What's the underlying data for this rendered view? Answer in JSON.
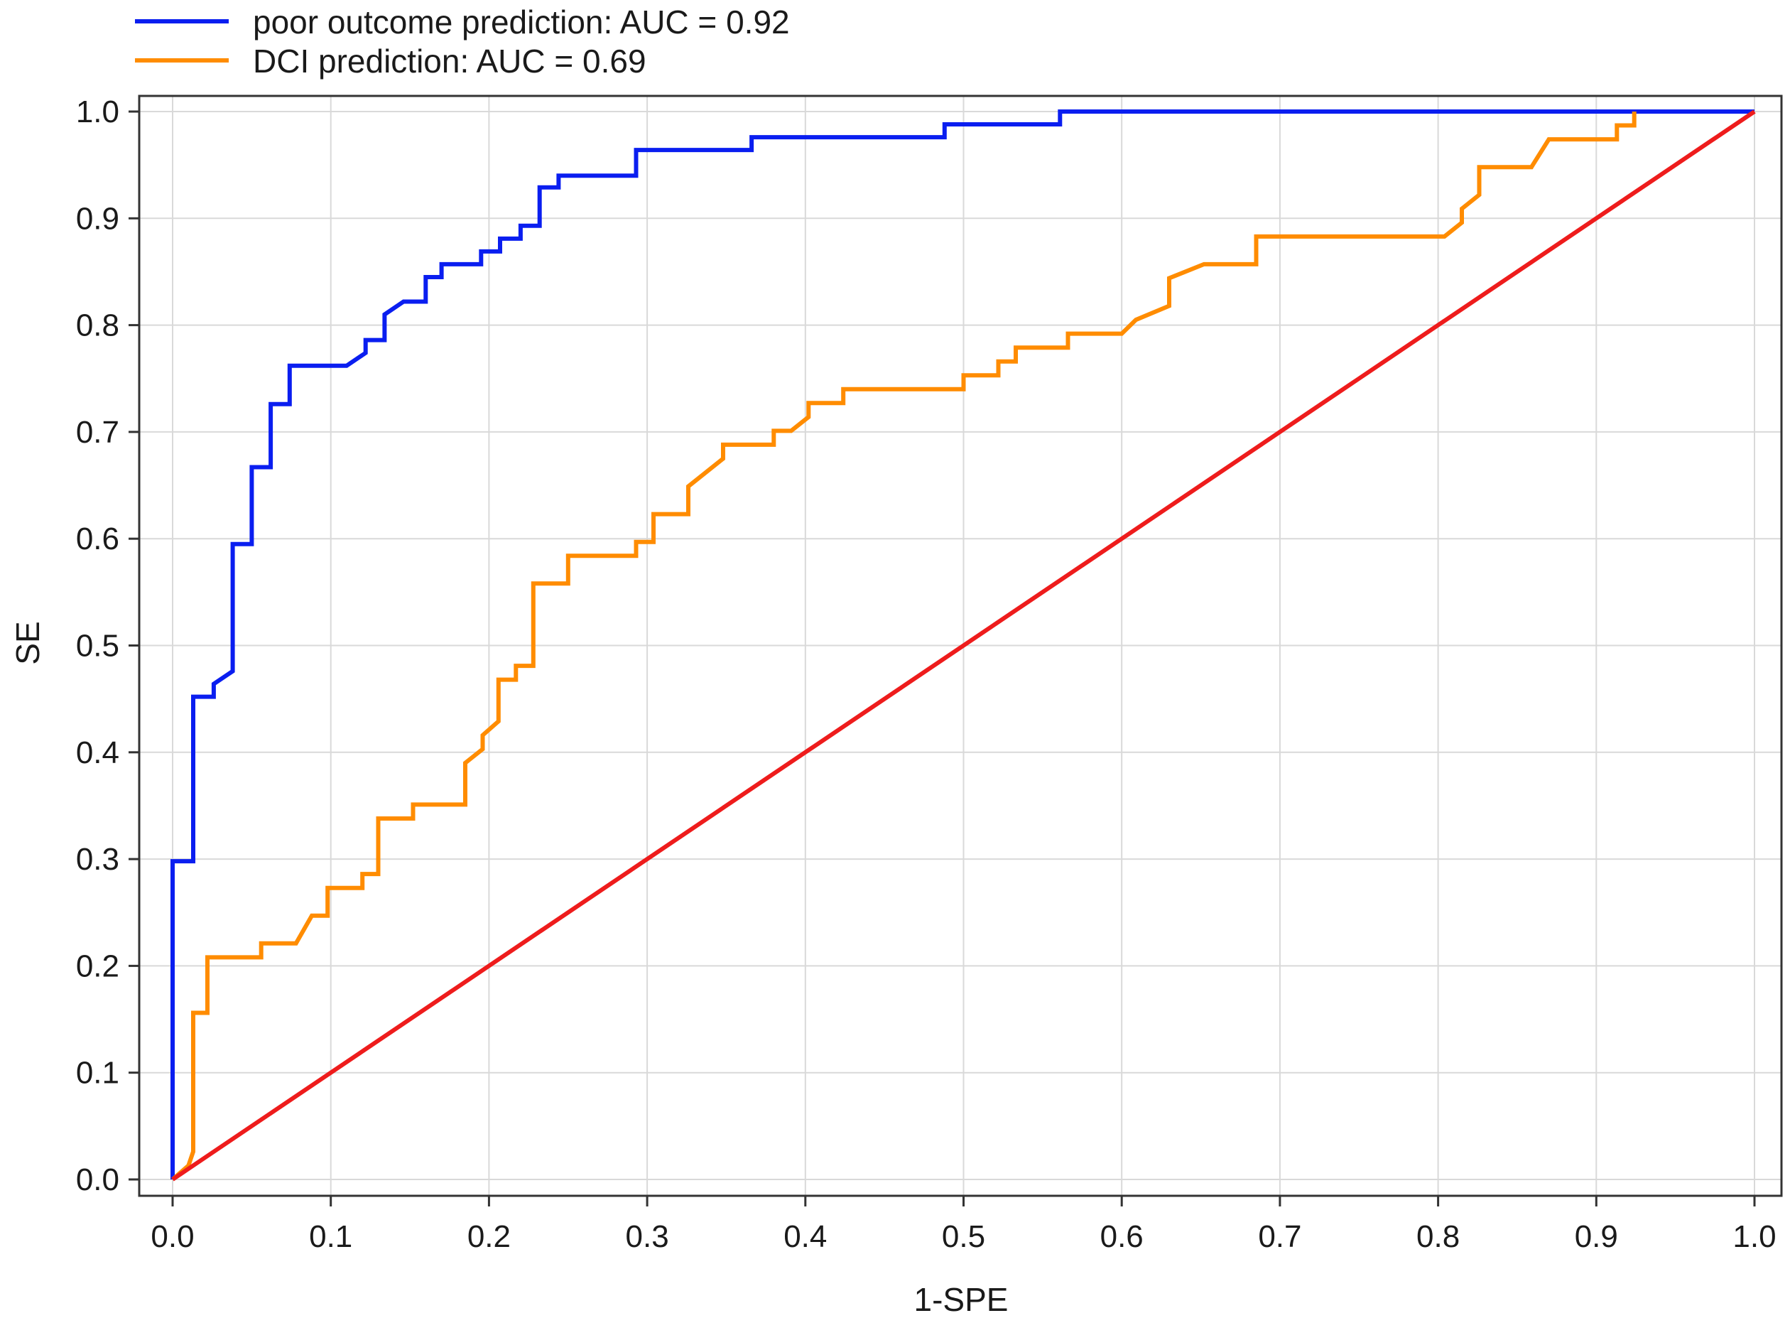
{
  "chart_data": {
    "type": "line",
    "title": "",
    "xlabel": "1-SPE",
    "ylabel": "SE",
    "xlim": [
      0.0,
      1.0
    ],
    "ylim": [
      0.0,
      1.0
    ],
    "x_ticks": [
      "0.0",
      "0.1",
      "0.2",
      "0.3",
      "0.4",
      "0.5",
      "0.6",
      "0.7",
      "0.8",
      "0.9",
      "1.0"
    ],
    "y_ticks": [
      "0.0",
      "0.1",
      "0.2",
      "0.3",
      "0.4",
      "0.5",
      "0.6",
      "0.7",
      "0.8",
      "0.9",
      "1.0"
    ],
    "grid": true,
    "legend_position": "top-left, above plot",
    "series": [
      {
        "name": "poor outcome prediction: AUC = 0.92",
        "color": "#0a1ef0",
        "x": [
          0.0,
          0.0,
          0.013,
          0.013,
          0.026,
          0.026,
          0.038,
          0.038,
          0.05,
          0.05,
          0.062,
          0.062,
          0.074,
          0.074,
          0.11,
          0.122,
          0.122,
          0.134,
          0.134,
          0.146,
          0.146,
          0.16,
          0.16,
          0.17,
          0.17,
          0.195,
          0.195,
          0.207,
          0.207,
          0.22,
          0.22,
          0.232,
          0.232,
          0.244,
          0.244,
          0.293,
          0.293,
          0.366,
          0.366,
          0.488,
          0.488,
          0.561,
          0.561,
          1.0
        ],
        "y": [
          0.0,
          0.298,
          0.298,
          0.452,
          0.452,
          0.464,
          0.476,
          0.595,
          0.595,
          0.667,
          0.667,
          0.726,
          0.726,
          0.762,
          0.762,
          0.774,
          0.786,
          0.786,
          0.81,
          0.822,
          0.822,
          0.822,
          0.845,
          0.845,
          0.857,
          0.857,
          0.869,
          0.869,
          0.881,
          0.881,
          0.893,
          0.893,
          0.929,
          0.929,
          0.94,
          0.94,
          0.964,
          0.964,
          0.976,
          0.976,
          0.988,
          0.988,
          1.0,
          1.0
        ]
      },
      {
        "name": "DCI prediction: AUC = 0.69",
        "color": "#ff8c00",
        "x": [
          0.0,
          0.01,
          0.013,
          0.013,
          0.022,
          0.022,
          0.056,
          0.056,
          0.078,
          0.088,
          0.098,
          0.098,
          0.12,
          0.12,
          0.13,
          0.13,
          0.152,
          0.152,
          0.185,
          0.185,
          0.196,
          0.196,
          0.206,
          0.206,
          0.217,
          0.217,
          0.228,
          0.228,
          0.25,
          0.25,
          0.293,
          0.293,
          0.304,
          0.304,
          0.326,
          0.326,
          0.348,
          0.348,
          0.38,
          0.38,
          0.391,
          0.402,
          0.402,
          0.424,
          0.424,
          0.5,
          0.5,
          0.522,
          0.522,
          0.533,
          0.533,
          0.566,
          0.566,
          0.6,
          0.609,
          0.63,
          0.63,
          0.652,
          0.685,
          0.685,
          0.804,
          0.815,
          0.815,
          0.826,
          0.826,
          0.859,
          0.87,
          0.913,
          0.913,
          0.924,
          0.924
        ],
        "y": [
          0.0,
          0.013,
          0.026,
          0.156,
          0.156,
          0.208,
          0.208,
          0.221,
          0.221,
          0.247,
          0.247,
          0.273,
          0.273,
          0.286,
          0.286,
          0.338,
          0.338,
          0.351,
          0.351,
          0.39,
          0.403,
          0.416,
          0.429,
          0.468,
          0.468,
          0.481,
          0.481,
          0.558,
          0.558,
          0.584,
          0.584,
          0.597,
          0.597,
          0.623,
          0.623,
          0.649,
          0.675,
          0.688,
          0.688,
          0.701,
          0.701,
          0.714,
          0.727,
          0.727,
          0.74,
          0.74,
          0.753,
          0.753,
          0.766,
          0.766,
          0.779,
          0.779,
          0.792,
          0.792,
          0.805,
          0.818,
          0.844,
          0.857,
          0.857,
          0.883,
          0.883,
          0.896,
          0.909,
          0.922,
          0.948,
          0.948,
          0.974,
          0.974,
          0.987,
          0.987,
          1.0
        ]
      },
      {
        "name": "",
        "color": "#ee1c1c",
        "x": [
          0.0,
          1.0
        ],
        "y": [
          0.0,
          1.0
        ]
      }
    ]
  }
}
